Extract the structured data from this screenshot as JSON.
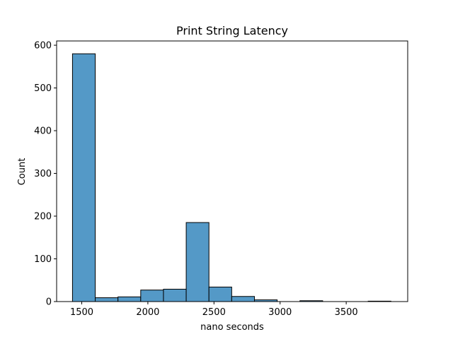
{
  "chart_data": {
    "type": "bar",
    "title": "Print String Latency",
    "xlabel": "nano seconds",
    "ylabel": "Count",
    "xlim": [
      1310,
      3965
    ],
    "ylim": [
      0,
      610
    ],
    "xticks": [
      1500,
      2000,
      2500,
      3000,
      3500
    ],
    "yticks": [
      0,
      100,
      200,
      300,
      400,
      500,
      600
    ],
    "grid": false,
    "bar_color": "#5499c7",
    "edge_color": "#000000",
    "bins": [
      {
        "x0": 1430,
        "x1": 1602,
        "count": 580
      },
      {
        "x0": 1602,
        "x1": 1774,
        "count": 9
      },
      {
        "x0": 1774,
        "x1": 1946,
        "count": 11
      },
      {
        "x0": 1946,
        "x1": 2118,
        "count": 27
      },
      {
        "x0": 2118,
        "x1": 2290,
        "count": 29
      },
      {
        "x0": 2290,
        "x1": 2462,
        "count": 185
      },
      {
        "x0": 2462,
        "x1": 2634,
        "count": 34
      },
      {
        "x0": 2634,
        "x1": 2806,
        "count": 12
      },
      {
        "x0": 2806,
        "x1": 2978,
        "count": 4
      },
      {
        "x0": 2978,
        "x1": 3150,
        "count": 0
      },
      {
        "x0": 3150,
        "x1": 3322,
        "count": 2
      },
      {
        "x0": 3322,
        "x1": 3494,
        "count": 0
      },
      {
        "x0": 3494,
        "x1": 3666,
        "count": 0
      },
      {
        "x0": 3666,
        "x1": 3838,
        "count": 1
      }
    ]
  }
}
